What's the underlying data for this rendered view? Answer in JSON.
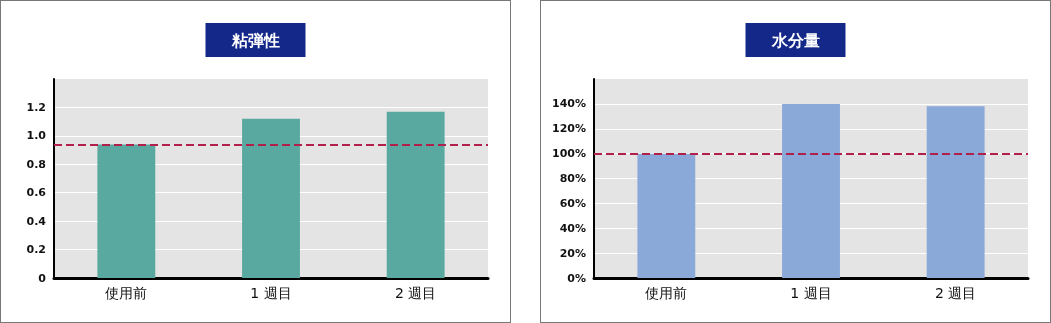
{
  "chart_data": [
    {
      "type": "bar",
      "title": "粘弾性",
      "categories": [
        "使用前",
        "1 週目",
        "2 週目"
      ],
      "values": [
        0.94,
        1.12,
        1.17
      ],
      "color": "#5aa9a0",
      "ylim": [
        0,
        1.4
      ],
      "yticks": [
        0,
        0.2,
        0.4,
        0.6,
        0.8,
        {
          "value": 1,
          "label": "1.0"
        },
        1.2
      ],
      "grid": "y",
      "ref_lines": [
        {
          "axis": "y",
          "value": 0.94,
          "color": "#b0204a",
          "line_style": "dashed"
        }
      ]
    },
    {
      "type": "bar",
      "title": "水分量",
      "categories": [
        "使用前",
        "1 週目",
        "2 週目"
      ],
      "values": [
        100,
        140,
        138
      ],
      "color": "#8aa8d8",
      "ylim": [
        0,
        160
      ],
      "yticks": [
        {
          "value": 0,
          "label": "0%"
        },
        {
          "value": 20,
          "label": "20%"
        },
        {
          "value": 40,
          "label": "40%"
        },
        {
          "value": 60,
          "label": "60%"
        },
        {
          "value": 80,
          "label": "80%"
        },
        {
          "value": 100,
          "label": "100%"
        },
        {
          "value": 120,
          "label": "120%"
        },
        {
          "value": 140,
          "label": "140%"
        }
      ],
      "grid": "y",
      "ref_lines": [
        {
          "axis": "y",
          "value": 100,
          "color": "#b0204a",
          "line_style": "dashed"
        }
      ]
    }
  ]
}
